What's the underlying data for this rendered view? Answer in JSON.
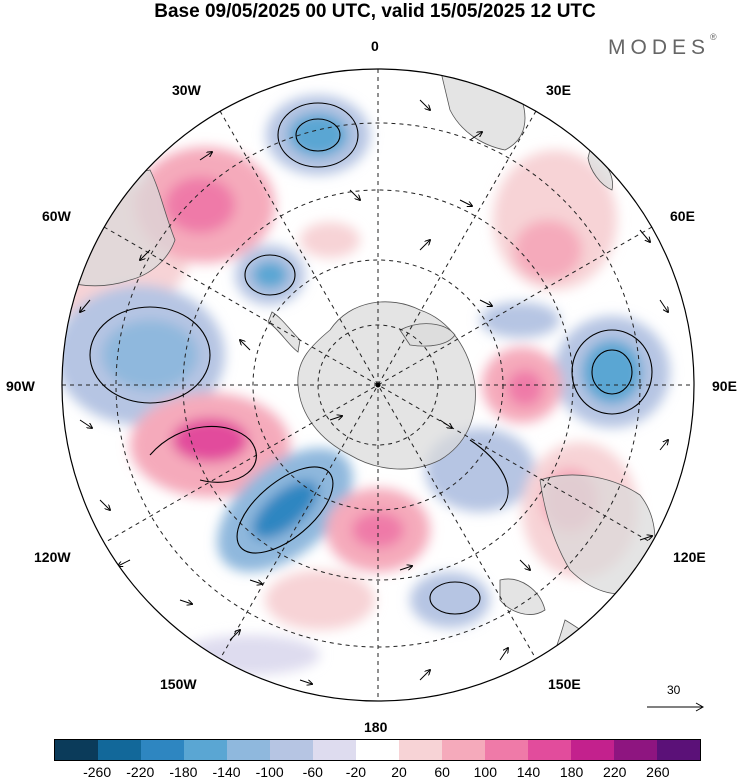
{
  "title": "Base 09/05/2025 00 UTC, valid 15/05/2025 12 UTC",
  "brand": {
    "name": "MODES",
    "mark": "®"
  },
  "longitude_labels": {
    "top": "0",
    "bottom": "180",
    "left": "90W",
    "right": "90E",
    "upper_left": "30W",
    "upper_right": "30E",
    "mid_left_upper": "60W",
    "mid_right_upper": "60E",
    "mid_left_lower": "120W",
    "mid_right_lower": "120E",
    "lower_left": "150W",
    "lower_right": "150E"
  },
  "reference_vector": {
    "value": "30"
  },
  "colorbar": {
    "colors": [
      "#0b3b5a",
      "#12689a",
      "#2e86c1",
      "#5aa6d3",
      "#8fb8dd",
      "#b6c5e3",
      "#dedcef",
      "#ffffff",
      "#f7d3d6",
      "#f5aabb",
      "#ef7aa8",
      "#e24c9c",
      "#c3218d",
      "#8e1580",
      "#5b1178"
    ],
    "ticks": [
      "-260",
      "-220",
      "-180",
      "-140",
      "-100",
      "-60",
      "-20",
      "20",
      "60",
      "100",
      "140",
      "180",
      "220",
      "260"
    ]
  }
}
